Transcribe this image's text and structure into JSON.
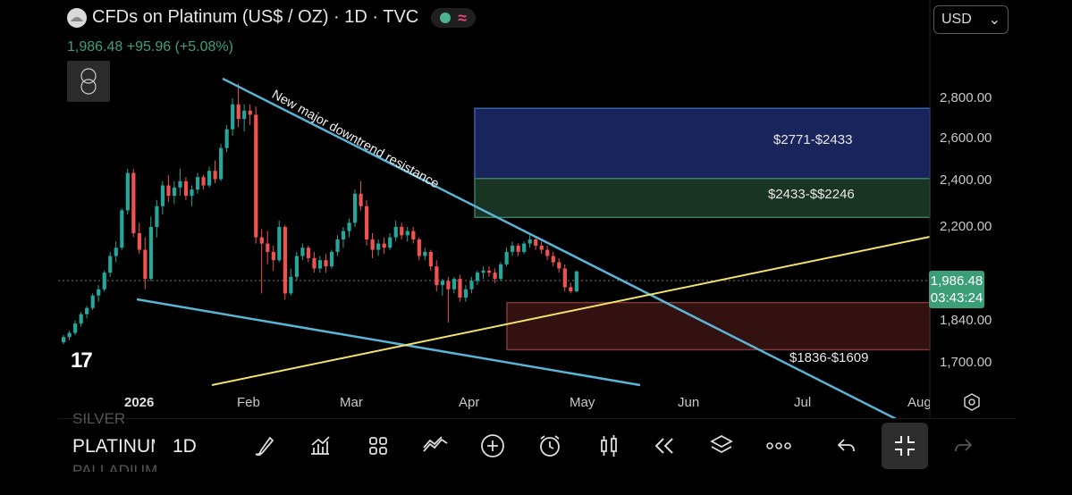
{
  "header": {
    "title": "CFDs on Platinum (US$ / OZ) · 1D · TVC",
    "last": "1,986.48",
    "change": "+95.96 (+5.08%)",
    "currency": "USD"
  },
  "price_badge": {
    "price": "1,986.48",
    "countdown": "03:43:24"
  },
  "annotation": "New major downtrend resistance",
  "zones": [
    {
      "label": "$2771-$2433",
      "color": "#1c2a6b"
    },
    {
      "label": "$2433-$$2246",
      "color": "#1f3d2a"
    },
    {
      "label": "$1836-$1609",
      "color": "#3d1414"
    }
  ],
  "bottom_bar": {
    "symbol_prev": "SILVER",
    "symbol": "PLATINUM",
    "symbol_next": "PALLADIUM",
    "interval": "1D",
    "tools": [
      "brush-icon",
      "indicators-icon",
      "layouts-icon",
      "drawing-tools-icon",
      "add-icon",
      "alert-icon",
      "candles-icon",
      "replay-icon",
      "layers-icon",
      "more-icon",
      "undo-icon",
      "fullscreen-exit-icon",
      "redo-icon"
    ]
  },
  "colors": {
    "up": "#26a69a",
    "down": "#ef5350",
    "accent": "#3b9e77",
    "trendline": "#5ab4d6",
    "support": "#f4e36b"
  },
  "chart_data": {
    "type": "candlestick",
    "symbol": "CFDs on Platinum (US$ / OZ)",
    "interval": "1D",
    "y_ticks": [
      "2,800.00",
      "2,600.00",
      "2,400.00",
      "2,200.00",
      "1,840.00",
      "1,700.00"
    ],
    "y_tick_values": [
      2800,
      2600,
      2400,
      2200,
      1840,
      1700
    ],
    "x_ticks": [
      "2026",
      "Feb",
      "Mar",
      "Apr",
      "May",
      "Jun",
      "Jul",
      "Aug"
    ],
    "ylim": [
      1640,
      2950
    ],
    "last_price": 1986.48,
    "candles": [
      {
        "o": 1645,
        "h": 1680,
        "l": 1635,
        "c": 1670
      },
      {
        "o": 1670,
        "h": 1700,
        "l": 1655,
        "c": 1690
      },
      {
        "o": 1690,
        "h": 1750,
        "l": 1680,
        "c": 1735
      },
      {
        "o": 1735,
        "h": 1790,
        "l": 1720,
        "c": 1780
      },
      {
        "o": 1780,
        "h": 1820,
        "l": 1760,
        "c": 1810
      },
      {
        "o": 1810,
        "h": 1880,
        "l": 1800,
        "c": 1870
      },
      {
        "o": 1870,
        "h": 1920,
        "l": 1840,
        "c": 1900
      },
      {
        "o": 1900,
        "h": 1990,
        "l": 1890,
        "c": 1980
      },
      {
        "o": 1980,
        "h": 2080,
        "l": 1960,
        "c": 2060
      },
      {
        "o": 2060,
        "h": 2130,
        "l": 2030,
        "c": 2100
      },
      {
        "o": 2100,
        "h": 2290,
        "l": 2090,
        "c": 2280
      },
      {
        "o": 2280,
        "h": 2480,
        "l": 2260,
        "c": 2460
      },
      {
        "o": 2460,
        "h": 2480,
        "l": 2150,
        "c": 2170
      },
      {
        "o": 2170,
        "h": 2220,
        "l": 2070,
        "c": 2090
      },
      {
        "o": 2090,
        "h": 2150,
        "l": 1900,
        "c": 1950
      },
      {
        "o": 1950,
        "h": 2250,
        "l": 1940,
        "c": 2200
      },
      {
        "o": 2200,
        "h": 2330,
        "l": 2150,
        "c": 2300
      },
      {
        "o": 2300,
        "h": 2420,
        "l": 2260,
        "c": 2400
      },
      {
        "o": 2400,
        "h": 2450,
        "l": 2320,
        "c": 2350
      },
      {
        "o": 2350,
        "h": 2420,
        "l": 2310,
        "c": 2390
      },
      {
        "o": 2390,
        "h": 2480,
        "l": 2350,
        "c": 2420
      },
      {
        "o": 2420,
        "h": 2440,
        "l": 2330,
        "c": 2350
      },
      {
        "o": 2350,
        "h": 2400,
        "l": 2300,
        "c": 2380
      },
      {
        "o": 2380,
        "h": 2460,
        "l": 2360,
        "c": 2440
      },
      {
        "o": 2440,
        "h": 2450,
        "l": 2380,
        "c": 2400
      },
      {
        "o": 2400,
        "h": 2490,
        "l": 2390,
        "c": 2470
      },
      {
        "o": 2470,
        "h": 2520,
        "l": 2410,
        "c": 2430
      },
      {
        "o": 2430,
        "h": 2600,
        "l": 2420,
        "c": 2580
      },
      {
        "o": 2580,
        "h": 2690,
        "l": 2560,
        "c": 2670
      },
      {
        "o": 2670,
        "h": 2820,
        "l": 2640,
        "c": 2790
      },
      {
        "o": 2790,
        "h": 2890,
        "l": 2680,
        "c": 2720
      },
      {
        "o": 2720,
        "h": 2790,
        "l": 2660,
        "c": 2760
      },
      {
        "o": 2760,
        "h": 2790,
        "l": 2690,
        "c": 2740
      },
      {
        "o": 2740,
        "h": 2780,
        "l": 2120,
        "c": 2150
      },
      {
        "o": 2150,
        "h": 2190,
        "l": 1880,
        "c": 2120
      },
      {
        "o": 2120,
        "h": 2180,
        "l": 2020,
        "c": 2080
      },
      {
        "o": 2080,
        "h": 2110,
        "l": 1990,
        "c": 2040
      },
      {
        "o": 2040,
        "h": 2230,
        "l": 2030,
        "c": 2200
      },
      {
        "o": 2200,
        "h": 2210,
        "l": 1850,
        "c": 1880
      },
      {
        "o": 1880,
        "h": 2000,
        "l": 1870,
        "c": 1960
      },
      {
        "o": 1960,
        "h": 2080,
        "l": 1940,
        "c": 2060
      },
      {
        "o": 2060,
        "h": 2120,
        "l": 2040,
        "c": 2100
      },
      {
        "o": 2100,
        "h": 2110,
        "l": 2030,
        "c": 2050
      },
      {
        "o": 2050,
        "h": 2080,
        "l": 1980,
        "c": 2000
      },
      {
        "o": 2000,
        "h": 2060,
        "l": 1980,
        "c": 2040
      },
      {
        "o": 2040,
        "h": 2070,
        "l": 1980,
        "c": 2010
      },
      {
        "o": 2010,
        "h": 2090,
        "l": 2000,
        "c": 2080
      },
      {
        "o": 2080,
        "h": 2160,
        "l": 2060,
        "c": 2140
      },
      {
        "o": 2140,
        "h": 2200,
        "l": 2100,
        "c": 2180
      },
      {
        "o": 2180,
        "h": 2240,
        "l": 2150,
        "c": 2220
      },
      {
        "o": 2220,
        "h": 2380,
        "l": 2200,
        "c": 2360
      },
      {
        "o": 2360,
        "h": 2420,
        "l": 2280,
        "c": 2300
      },
      {
        "o": 2300,
        "h": 2330,
        "l": 2110,
        "c": 2140
      },
      {
        "o": 2140,
        "h": 2170,
        "l": 2050,
        "c": 2090
      },
      {
        "o": 2090,
        "h": 2140,
        "l": 2060,
        "c": 2120
      },
      {
        "o": 2120,
        "h": 2150,
        "l": 2070,
        "c": 2100
      },
      {
        "o": 2100,
        "h": 2170,
        "l": 2090,
        "c": 2150
      },
      {
        "o": 2150,
        "h": 2230,
        "l": 2130,
        "c": 2200
      },
      {
        "o": 2200,
        "h": 2220,
        "l": 2140,
        "c": 2160
      },
      {
        "o": 2160,
        "h": 2200,
        "l": 2130,
        "c": 2180
      },
      {
        "o": 2180,
        "h": 2200,
        "l": 2120,
        "c": 2140
      },
      {
        "o": 2140,
        "h": 2150,
        "l": 2040,
        "c": 2060
      },
      {
        "o": 2060,
        "h": 2100,
        "l": 2040,
        "c": 2080
      },
      {
        "o": 2080,
        "h": 2090,
        "l": 1990,
        "c": 2010
      },
      {
        "o": 2010,
        "h": 2040,
        "l": 1890,
        "c": 1920
      },
      {
        "o": 1920,
        "h": 1950,
        "l": 1870,
        "c": 1940
      },
      {
        "o": 1940,
        "h": 1960,
        "l": 1740,
        "c": 1900
      },
      {
        "o": 1900,
        "h": 1960,
        "l": 1880,
        "c": 1950
      },
      {
        "o": 1950,
        "h": 1970,
        "l": 1840,
        "c": 1860
      },
      {
        "o": 1860,
        "h": 1920,
        "l": 1840,
        "c": 1900
      },
      {
        "o": 1900,
        "h": 1960,
        "l": 1880,
        "c": 1940
      },
      {
        "o": 1940,
        "h": 1990,
        "l": 1920,
        "c": 1980
      },
      {
        "o": 1980,
        "h": 2010,
        "l": 1950,
        "c": 1990
      },
      {
        "o": 1990,
        "h": 2010,
        "l": 1960,
        "c": 1980
      },
      {
        "o": 1980,
        "h": 2000,
        "l": 1930,
        "c": 1950
      },
      {
        "o": 1950,
        "h": 2030,
        "l": 1940,
        "c": 2020
      },
      {
        "o": 2020,
        "h": 2100,
        "l": 2010,
        "c": 2080
      },
      {
        "o": 2080,
        "h": 2130,
        "l": 2060,
        "c": 2110
      },
      {
        "o": 2110,
        "h": 2120,
        "l": 2060,
        "c": 2080
      },
      {
        "o": 2080,
        "h": 2130,
        "l": 2070,
        "c": 2120
      },
      {
        "o": 2120,
        "h": 2160,
        "l": 2100,
        "c": 2140
      },
      {
        "o": 2140,
        "h": 2150,
        "l": 2090,
        "c": 2110
      },
      {
        "o": 2110,
        "h": 2130,
        "l": 2070,
        "c": 2090
      },
      {
        "o": 2090,
        "h": 2110,
        "l": 2040,
        "c": 2060
      },
      {
        "o": 2060,
        "h": 2080,
        "l": 2010,
        "c": 2030
      },
      {
        "o": 2030,
        "h": 2050,
        "l": 1980,
        "c": 2000
      },
      {
        "o": 2000,
        "h": 2020,
        "l": 1890,
        "c": 1910
      },
      {
        "o": 1910,
        "h": 1930,
        "l": 1880,
        "c": 1890
      },
      {
        "o": 1890,
        "h": 1990,
        "l": 1885,
        "c": 1986
      }
    ],
    "lines": [
      {
        "name": "New major downtrend resistance",
        "from": [
          "Jan 22",
          2900
        ],
        "to": [
          "Jul 20",
          1640
        ]
      },
      {
        "name": "lower trendline",
        "from": [
          "Dec 28",
          1890
        ],
        "to": [
          "May 20",
          1660
        ]
      },
      {
        "name": "rising support",
        "from": [
          "Jan 20",
          1620
        ],
        "to": [
          "Aug 5",
          2150
        ]
      }
    ],
    "zones": [
      {
        "label": "$2771-$2433",
        "from": 2771,
        "to": 2433
      },
      {
        "label": "$2433-$$2246",
        "from": 2433,
        "to": 2246
      },
      {
        "label": "$1836-$1609",
        "from": 1836,
        "to": 1609
      }
    ]
  }
}
